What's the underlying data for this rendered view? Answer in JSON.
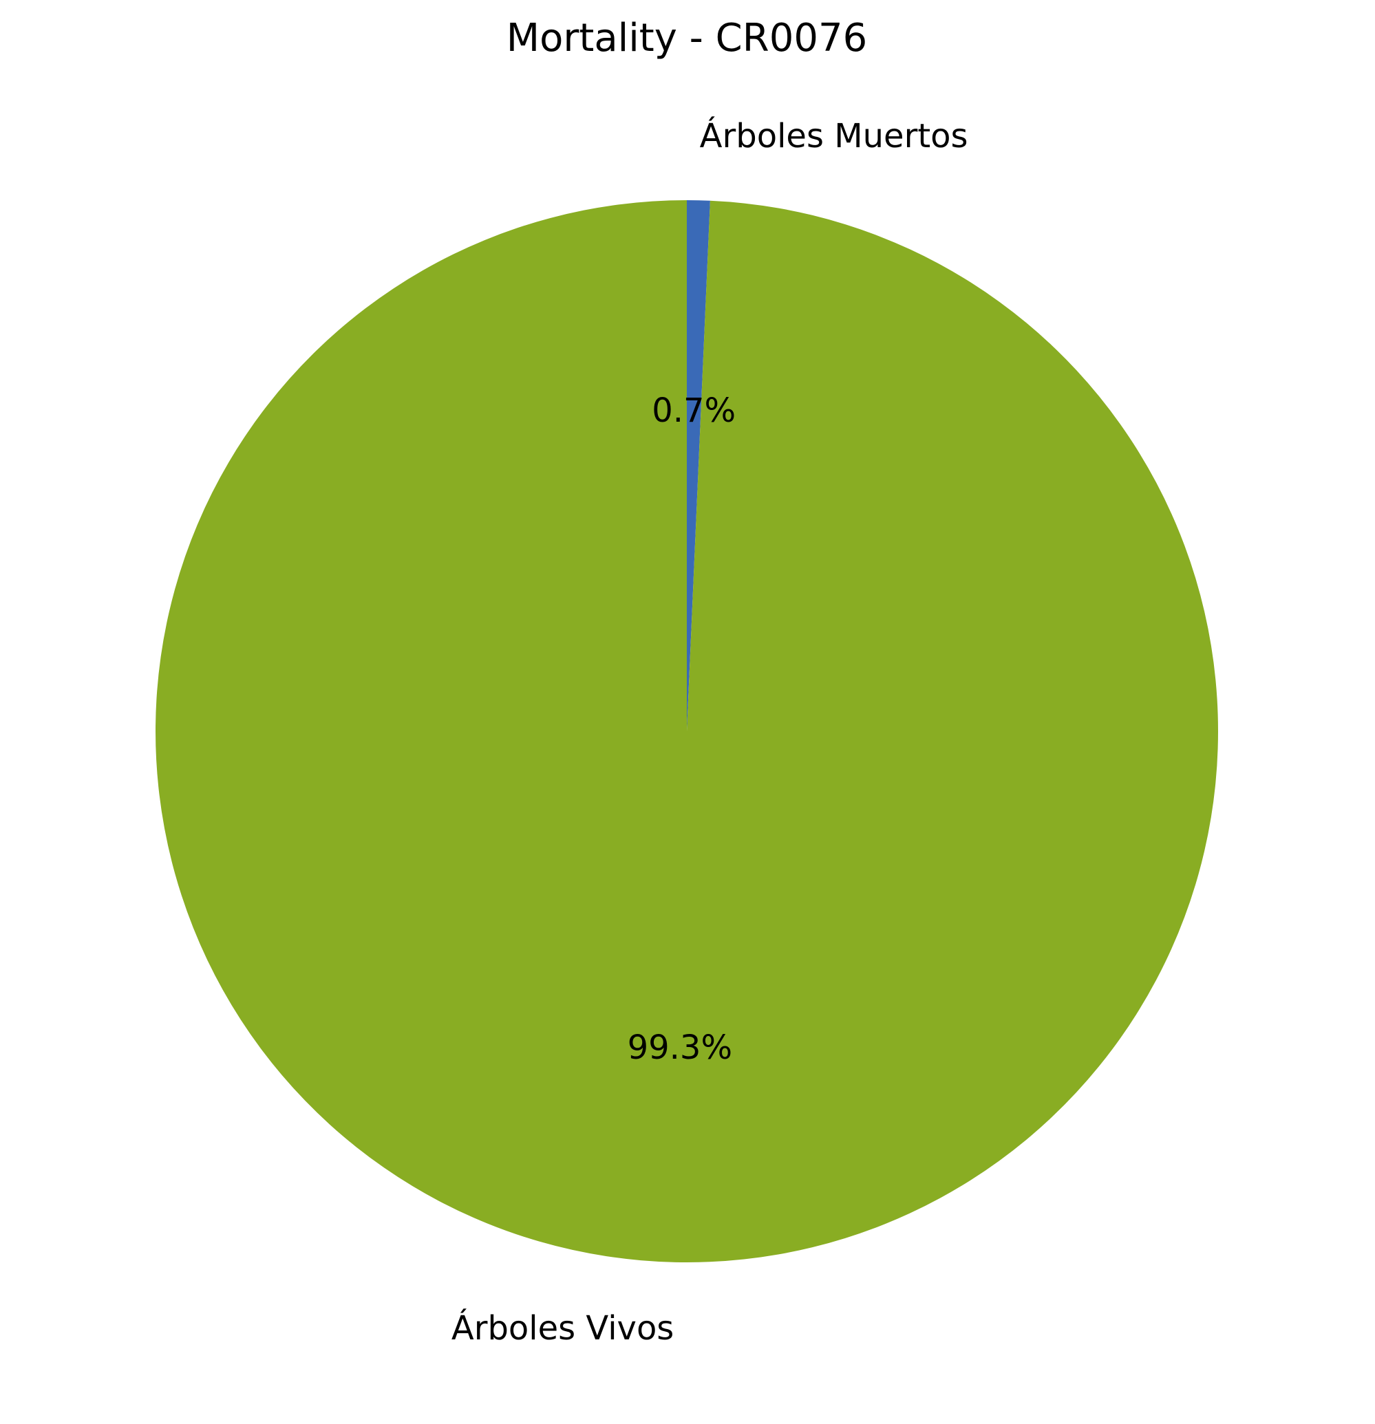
{
  "chart_data": {
    "type": "pie",
    "title": "Mortality - CR0076",
    "start_angle_deg": 90,
    "direction": "clockwise",
    "slices": [
      {
        "label": "Árboles Muertos",
        "value": 0.7,
        "pct_label": "0.7%",
        "color": "#3a6ab7"
      },
      {
        "label": "Árboles Vivos",
        "value": 99.3,
        "pct_label": "99.3%",
        "color": "#89ad23"
      }
    ]
  }
}
